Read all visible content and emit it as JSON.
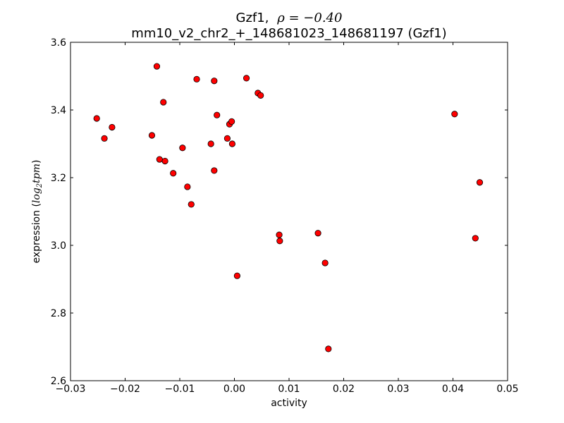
{
  "chart_data": {
    "type": "scatter",
    "title_gene": "Gzf1,",
    "title_rho": "ρ = −0.40",
    "subtitle": "mm10_v2_chr2_+_148681023_148681197 (Gzf1)",
    "xlabel": "activity",
    "ylabel_text": "expression (",
    "ylabel_math": "log",
    "ylabel_sub": "2",
    "ylabel_math2": "tpm",
    "ylabel_close": ")",
    "xlim": [
      -0.03,
      0.05
    ],
    "ylim": [
      2.6,
      3.6
    ],
    "x_ticks": [
      -0.03,
      -0.02,
      -0.01,
      0.0,
      0.01,
      0.02,
      0.03,
      0.04,
      0.05
    ],
    "x_tick_labels": [
      "−0.03",
      "−0.02",
      "−0.01",
      "0.00",
      "0.01",
      "0.02",
      "0.03",
      "0.04",
      "0.05"
    ],
    "y_ticks": [
      2.6,
      2.8,
      3.0,
      3.2,
      3.4,
      3.6
    ],
    "y_tick_labels": [
      "2.6",
      "2.8",
      "3.0",
      "3.2",
      "3.4",
      "3.6"
    ],
    "marker_color": "#ff0000",
    "points": [
      {
        "x": -0.0252,
        "y": 3.375
      },
      {
        "x": -0.0238,
        "y": 3.316
      },
      {
        "x": -0.0224,
        "y": 3.349
      },
      {
        "x": -0.0142,
        "y": 3.529
      },
      {
        "x": -0.0151,
        "y": 3.325
      },
      {
        "x": -0.0137,
        "y": 3.254
      },
      {
        "x": -0.013,
        "y": 3.423
      },
      {
        "x": -0.0127,
        "y": 3.249
      },
      {
        "x": -0.0112,
        "y": 3.213
      },
      {
        "x": -0.0095,
        "y": 3.288
      },
      {
        "x": -0.0086,
        "y": 3.173
      },
      {
        "x": -0.0079,
        "y": 3.121
      },
      {
        "x": -0.0069,
        "y": 3.491
      },
      {
        "x": -0.0043,
        "y": 3.3
      },
      {
        "x": -0.0037,
        "y": 3.486
      },
      {
        "x": -0.0037,
        "y": 3.221
      },
      {
        "x": -0.0032,
        "y": 3.385
      },
      {
        "x": -0.0013,
        "y": 3.316
      },
      {
        "x": -0.0009,
        "y": 3.358
      },
      {
        "x": -0.0005,
        "y": 3.366
      },
      {
        "x": -0.0004,
        "y": 3.3
      },
      {
        "x": 0.0005,
        "y": 2.91
      },
      {
        "x": 0.0022,
        "y": 3.494
      },
      {
        "x": 0.0043,
        "y": 3.45
      },
      {
        "x": 0.0048,
        "y": 3.443
      },
      {
        "x": 0.0082,
        "y": 3.031
      },
      {
        "x": 0.0083,
        "y": 3.013
      },
      {
        "x": 0.0153,
        "y": 3.036
      },
      {
        "x": 0.0166,
        "y": 2.948
      },
      {
        "x": 0.0172,
        "y": 2.694
      },
      {
        "x": 0.0403,
        "y": 3.388
      },
      {
        "x": 0.0441,
        "y": 3.021
      },
      {
        "x": 0.0449,
        "y": 3.186
      }
    ]
  }
}
